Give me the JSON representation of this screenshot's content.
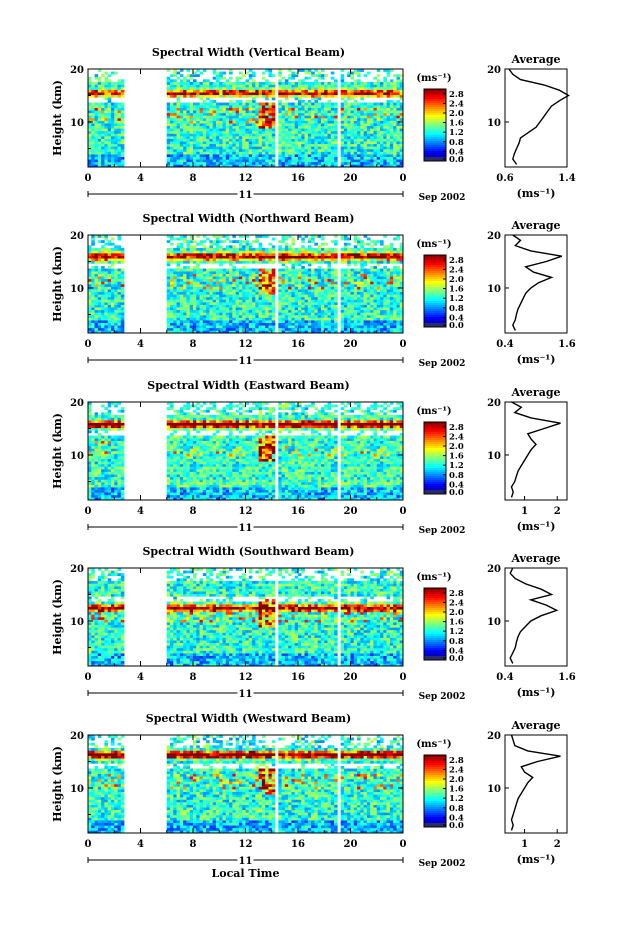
{
  "figure": {
    "xlabel": "Local Time",
    "date_label": "Sep 2002",
    "day_label": "11",
    "colorbar_unit": "(ms⁻¹)",
    "colorbar_ticks": [
      "2.8",
      "2.4",
      "2.0",
      "1.6",
      "1.2",
      "0.8",
      "0.4",
      "0.0"
    ],
    "ylabel": "Height (km)",
    "avg_title": "Average",
    "avg_xlabel": "(ms⁻¹)"
  },
  "chart_data": [
    {
      "type": "heatmap",
      "title": "Spectral Width (Vertical Beam)",
      "xlabel": "Local Time",
      "ylabel": "Height (km)",
      "x_ticks": [
        "0",
        "4",
        "8",
        "12",
        "16",
        "20",
        "0"
      ],
      "y_ticks": [
        "10",
        "20"
      ],
      "xlim": [
        0,
        24
      ],
      "ylim": [
        1.5,
        20
      ],
      "colorbar": {
        "label": "(ms⁻¹)",
        "ticks": [
          2.8,
          2.4,
          2.0,
          1.6,
          1.2,
          0.8,
          0.4,
          0.0
        ],
        "range": [
          0.0,
          3.0
        ]
      },
      "data_gaps_hours": [
        [
          0.7,
          0.8
        ],
        [
          2.8,
          6.0
        ],
        [
          14.3,
          14.5
        ],
        [
          19.1,
          19.3
        ]
      ],
      "ridge": {
        "height_km": 15.5,
        "width": 2.2
      },
      "average": {
        "title": "Average",
        "xlabel": "(ms⁻¹)",
        "x_ticks": [
          "0.6",
          "1.4"
        ],
        "xlim": [
          0.6,
          1.4
        ],
        "height": [
          2,
          3,
          4,
          5,
          6,
          7,
          8,
          9,
          10,
          11,
          12,
          13,
          14,
          15,
          16,
          17,
          18,
          19,
          20
        ],
        "value": [
          0.75,
          0.7,
          0.72,
          0.75,
          0.78,
          0.8,
          0.9,
          1.0,
          1.05,
          1.1,
          1.15,
          1.2,
          1.3,
          1.42,
          1.3,
          1.1,
          0.8,
          0.7,
          0.65
        ]
      }
    },
    {
      "type": "heatmap",
      "title": "Spectral Width (Northward Beam)",
      "xlabel": "Local Time",
      "ylabel": "Height (km)",
      "x_ticks": [
        "0",
        "4",
        "8",
        "12",
        "16",
        "20",
        "0"
      ],
      "y_ticks": [
        "10",
        "20"
      ],
      "xlim": [
        0,
        24
      ],
      "ylim": [
        1.5,
        20
      ],
      "colorbar": {
        "label": "(ms⁻¹)",
        "ticks": [
          2.8,
          2.4,
          2.0,
          1.6,
          1.2,
          0.8,
          0.4,
          0.0
        ],
        "range": [
          0.0,
          3.0
        ]
      },
      "data_gaps_hours": [
        [
          0.7,
          0.8
        ],
        [
          2.8,
          6.0
        ],
        [
          14.3,
          14.5
        ],
        [
          19.1,
          19.3
        ]
      ],
      "ridge": {
        "height_km": 16.0,
        "width": 2.6
      },
      "average": {
        "title": "Average",
        "xlabel": "(ms⁻¹)",
        "x_ticks": [
          "0.4",
          "1.6"
        ],
        "xlim": [
          0.4,
          1.6
        ],
        "height": [
          2,
          3,
          4,
          5,
          6,
          7,
          8,
          9,
          10,
          11,
          12,
          13,
          14,
          15,
          16,
          17,
          18,
          19,
          20
        ],
        "value": [
          0.6,
          0.55,
          0.6,
          0.62,
          0.65,
          0.7,
          0.75,
          0.8,
          0.9,
          1.05,
          1.3,
          0.95,
          0.8,
          1.2,
          1.5,
          0.9,
          0.6,
          0.7,
          0.55
        ]
      }
    },
    {
      "type": "heatmap",
      "title": "Spectral Width (Eastward Beam)",
      "xlabel": "Local Time",
      "ylabel": "Height (km)",
      "x_ticks": [
        "0",
        "4",
        "8",
        "12",
        "16",
        "20",
        "0"
      ],
      "y_ticks": [
        "10",
        "20"
      ],
      "xlim": [
        0,
        24
      ],
      "ylim": [
        1.5,
        20
      ],
      "colorbar": {
        "label": "(ms⁻¹)",
        "ticks": [
          2.8,
          2.4,
          2.0,
          1.6,
          1.2,
          0.8,
          0.4,
          0.0
        ],
        "range": [
          0.0,
          3.0
        ]
      },
      "data_gaps_hours": [
        [
          0.7,
          0.8
        ],
        [
          2.8,
          6.0
        ],
        [
          14.3,
          14.5
        ],
        [
          19.1,
          19.3
        ]
      ],
      "ridge": {
        "height_km": 15.8,
        "width": 2.8
      },
      "average": {
        "title": "Average",
        "xlabel": "(ms⁻¹)",
        "x_ticks": [
          "1",
          "2"
        ],
        "xlim": [
          0.4,
          2.3
        ],
        "height": [
          2,
          3,
          4,
          5,
          6,
          7,
          8,
          9,
          10,
          11,
          12,
          13,
          14,
          15,
          16,
          17,
          18,
          19,
          20
        ],
        "value": [
          0.6,
          0.65,
          0.6,
          0.7,
          0.75,
          0.8,
          0.9,
          1.0,
          1.1,
          1.2,
          1.35,
          1.2,
          1.1,
          1.6,
          2.1,
          1.2,
          0.7,
          0.9,
          0.6
        ]
      }
    },
    {
      "type": "heatmap",
      "title": "Spectral Width (Southward Beam)",
      "xlabel": "Local Time",
      "ylabel": "Height (km)",
      "x_ticks": [
        "0",
        "4",
        "8",
        "12",
        "16",
        "20",
        "0"
      ],
      "y_ticks": [
        "10",
        "20"
      ],
      "xlim": [
        0,
        24
      ],
      "ylim": [
        1.5,
        20
      ],
      "colorbar": {
        "label": "(ms⁻¹)",
        "ticks": [
          2.8,
          2.4,
          2.0,
          1.6,
          1.2,
          0.8,
          0.4,
          0.0
        ],
        "range": [
          0.0,
          3.0
        ]
      },
      "data_gaps_hours": [
        [
          0.7,
          0.8
        ],
        [
          2.8,
          6.0
        ],
        [
          14.3,
          14.5
        ],
        [
          19.1,
          19.3
        ]
      ],
      "ridge": {
        "height_km": 12.5,
        "width": 2.4
      },
      "average": {
        "title": "Average",
        "xlabel": "(ms⁻¹)",
        "x_ticks": [
          "0.4",
          "1.6"
        ],
        "xlim": [
          0.4,
          1.6
        ],
        "height": [
          2,
          3,
          4,
          5,
          6,
          7,
          8,
          9,
          10,
          11,
          12,
          13,
          14,
          15,
          16,
          17,
          18,
          19,
          20
        ],
        "value": [
          0.55,
          0.5,
          0.55,
          0.6,
          0.62,
          0.65,
          0.7,
          0.8,
          0.9,
          1.1,
          1.4,
          1.2,
          0.9,
          1.3,
          1.1,
          0.8,
          0.6,
          0.5,
          0.55
        ]
      }
    },
    {
      "type": "heatmap",
      "title": "Spectral Width (Westward Beam)",
      "xlabel": "Local Time",
      "ylabel": "Height (km)",
      "x_ticks": [
        "0",
        "4",
        "8",
        "12",
        "16",
        "20",
        "0"
      ],
      "y_ticks": [
        "10",
        "20"
      ],
      "xlim": [
        0,
        24
      ],
      "ylim": [
        1.5,
        20
      ],
      "colorbar": {
        "label": "(ms⁻¹)",
        "ticks": [
          2.8,
          2.4,
          2.0,
          1.6,
          1.2,
          0.8,
          0.4,
          0.0
        ],
        "range": [
          0.0,
          3.0
        ]
      },
      "data_gaps_hours": [
        [
          0.7,
          0.8
        ],
        [
          2.8,
          6.0
        ],
        [
          14.3,
          14.5
        ],
        [
          19.1,
          19.3
        ]
      ],
      "ridge": {
        "height_km": 16.3,
        "width": 3.0
      },
      "average": {
        "title": "Average",
        "xlabel": "(ms⁻¹)",
        "x_ticks": [
          "1",
          "2"
        ],
        "xlim": [
          0.4,
          2.3
        ],
        "height": [
          2,
          3,
          4,
          5,
          6,
          7,
          8,
          9,
          10,
          11,
          12,
          13,
          14,
          15,
          16,
          17,
          18,
          19,
          20
        ],
        "value": [
          0.6,
          0.65,
          0.6,
          0.65,
          0.7,
          0.75,
          0.8,
          0.9,
          1.0,
          1.1,
          1.25,
          1.0,
          0.9,
          1.4,
          2.1,
          1.1,
          0.7,
          0.65,
          0.6
        ]
      }
    }
  ]
}
